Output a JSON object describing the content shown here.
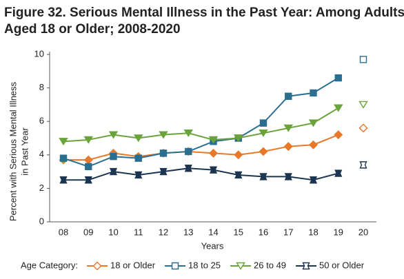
{
  "chart_data": {
    "type": "line",
    "title": [
      "Figure 32. Serious Mental Illness in the Past Year: Among Adults",
      "Aged 18 or Older; 2008-2020"
    ],
    "ylabel": [
      "Percent with Serious Mental Illness",
      "in Past Year"
    ],
    "xlabel": "Years",
    "legend_title": "Age Category:",
    "categories": [
      "08",
      "09",
      "10",
      "11",
      "12",
      "13",
      "14",
      "15",
      "16",
      "17",
      "18",
      "19",
      "20"
    ],
    "line_break_before": "20",
    "series": [
      {
        "name": "18 or Older",
        "color": "#e8782a",
        "marker": "diamond",
        "values": [
          3.7,
          3.7,
          4.1,
          3.9,
          4.1,
          4.2,
          4.1,
          4.0,
          4.2,
          4.5,
          4.6,
          5.2,
          5.6
        ]
      },
      {
        "name": "18 to 25",
        "color": "#2a6f8f",
        "marker": "square",
        "values": [
          3.8,
          3.3,
          3.9,
          3.8,
          4.1,
          4.2,
          4.8,
          5.0,
          5.9,
          7.5,
          7.7,
          8.6,
          9.7
        ]
      },
      {
        "name": "26 to 49",
        "color": "#6aa33a",
        "marker": "triangle-down",
        "values": [
          4.8,
          4.9,
          5.2,
          5.0,
          5.2,
          5.3,
          4.9,
          5.0,
          5.3,
          5.6,
          5.9,
          6.8,
          7.0
        ]
      },
      {
        "name": "50 or Older",
        "color": "#1c3550",
        "marker": "bowtie",
        "values": [
          2.5,
          2.5,
          3.0,
          2.8,
          3.0,
          3.2,
          3.1,
          2.8,
          2.7,
          2.7,
          2.5,
          2.9,
          3.4
        ]
      }
    ],
    "ylim": [
      0,
      10
    ],
    "yticks": [
      0,
      2,
      4,
      6,
      8,
      10
    ],
    "grid": false
  }
}
